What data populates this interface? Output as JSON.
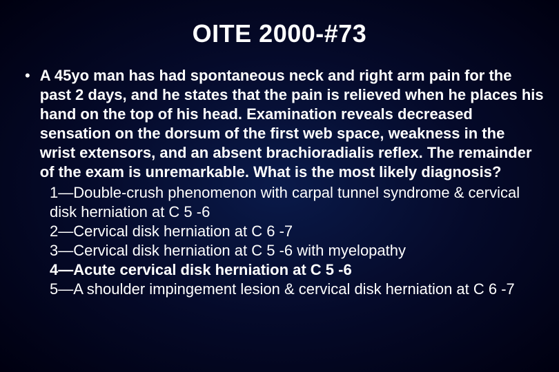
{
  "slide": {
    "title": "OITE 2000-#73",
    "question": "A 45yo man has had spontaneous neck and right arm pain for the past 2 days, and he states that the pain is relieved when he places his hand on the top of his head.  Examination reveals decreased sensation on the dorsum of the first web space, weakness in the wrist extensors, and an absent brachioradialis reflex.  The remainder of the exam is unremarkable.  What is the most likely diagnosis?",
    "answers": [
      {
        "text": "1—Double-crush phenomenon with carpal tunnel syndrome & cervical disk herniation at C 5 -6",
        "highlight": false
      },
      {
        "text": "2—Cervical disk herniation at C 6 -7",
        "highlight": false
      },
      {
        "text": "3—Cervical disk herniation at C 5 -6 with myelopathy",
        "highlight": false
      },
      {
        "text": "4—Acute cervical disk herniation at C 5 -6",
        "highlight": true
      },
      {
        "text": "5—A shoulder impingement lesion & cervical disk herniation at C 6 -7",
        "highlight": false
      }
    ],
    "bullet_glyph": "•",
    "colors": {
      "text": "#ffffff",
      "bg_center": "#0a1a4a",
      "bg_mid": "#050a2a",
      "bg_edge": "#000010"
    },
    "typography": {
      "title_fontsize": 36,
      "body_fontsize": 22,
      "font_family": "Arial"
    }
  }
}
